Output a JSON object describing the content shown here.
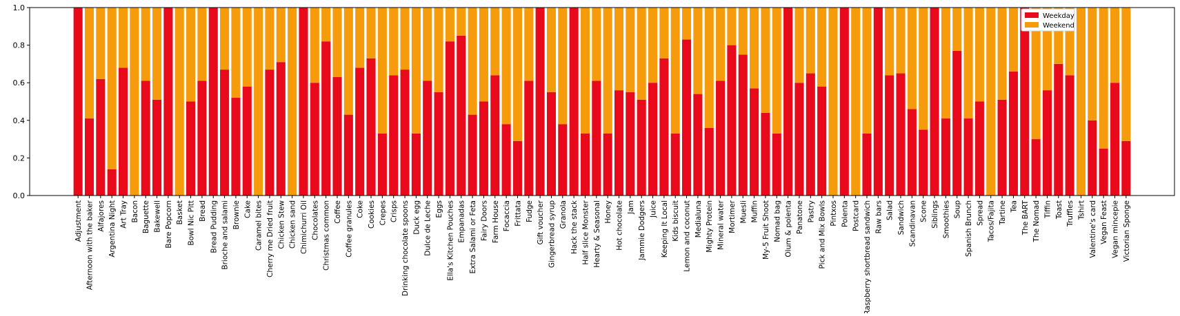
{
  "chart_data": {
    "type": "bar",
    "stacked": true,
    "categories": [
      "Adjustment",
      "Afternoon with the baker",
      "Alfajores",
      "Argentina Night",
      "Art Tray",
      "Bacon",
      "Baguette",
      "Bakewell",
      "Bare Popcorn",
      "Basket",
      "Bowl Nic Pitt",
      "Bread",
      "Bread Pudding",
      "Brioche and salami",
      "Brownie",
      "Cake",
      "Caramel bites",
      "Cherry me Dried fruit",
      "Chicken Stew",
      "Chicken sand",
      "Chimichurri Oil",
      "Chocolates",
      "Christmas common",
      "Coffee",
      "Coffee granules",
      "Coke",
      "Cookies",
      "Crepes",
      "Crisps",
      "Drinking chocolate spoons",
      "Duck egg",
      "Dulce de Leche",
      "Eggs",
      "Ella's Kitchen Pouches",
      "Empanadas",
      "Extra Salami or Feta",
      "Fairy Doors",
      "Farm House",
      "Focaccia",
      "Frittata",
      "Fudge",
      "Gift voucher",
      "Gingerbread syrup",
      "Granola",
      "Hack the stack",
      "Half slice Monster",
      "Hearty & Seasonal",
      "Honey",
      "Hot chocolate",
      "Jam",
      "Jammie Dodgers",
      "Juice",
      "Keeping It Local",
      "Kids biscuit",
      "Lemon and coconut",
      "Medialuna",
      "Mighty Protein",
      "Mineral water",
      "Mortimer",
      "Muesli",
      "Muffin",
      "My-5 Fruit Shoot",
      "Nomad bag",
      "Olum & polenta",
      "Panatone",
      "Pastry",
      "Pick and Mix Bowls",
      "Pintxos",
      "Polenta",
      "Postcard",
      "Raspberry shortbread sandwich",
      "Raw bars",
      "Salad",
      "Sandwich",
      "Scandinavan",
      "Scone",
      "Siblings",
      "Smoothies",
      "Soup",
      "Spanish Brunch",
      "Spread",
      "Tacos/Fajita",
      "Tartine",
      "Tea",
      "The BART",
      "The Nomad",
      "Tiffin",
      "Toast",
      "Truffles",
      "Tshirt",
      "Valentine's card",
      "Vegan Feast",
      "Vegan mincepie",
      "Victorian Sponge"
    ],
    "series": [
      {
        "name": "Weekday",
        "color": "#e8091a",
        "values": [
          1.0,
          0.41,
          0.62,
          0.14,
          0.68,
          0.0,
          0.61,
          0.51,
          1.0,
          0.0,
          0.5,
          0.61,
          1.0,
          0.67,
          0.52,
          0.58,
          0.0,
          0.67,
          0.71,
          0.0,
          1.0,
          0.6,
          0.82,
          0.63,
          0.43,
          0.68,
          0.73,
          0.33,
          0.64,
          0.67,
          0.33,
          0.61,
          0.55,
          0.82,
          0.85,
          0.43,
          0.5,
          0.64,
          0.38,
          0.29,
          0.61,
          1.0,
          0.55,
          0.38,
          1.0,
          0.33,
          0.61,
          0.33,
          0.56,
          0.55,
          0.51,
          0.6,
          0.73,
          0.33,
          0.83,
          0.54,
          0.36,
          0.61,
          0.8,
          0.75,
          0.57,
          0.44,
          0.33,
          1.0,
          0.6,
          0.65,
          0.58,
          0.0,
          1.0,
          0.0,
          0.33,
          1.0,
          0.64,
          0.65,
          0.46,
          0.35,
          1.0,
          0.41,
          0.77,
          0.41,
          0.5,
          0.0,
          0.51,
          0.66,
          1.0,
          0.3,
          0.56,
          0.7,
          0.64,
          0.0,
          0.4,
          0.25,
          0.6,
          0.29
        ]
      },
      {
        "name": "Weekend",
        "color": "#f59b0c",
        "values": [
          0.0,
          0.59,
          0.38,
          0.86,
          0.32,
          1.0,
          0.39,
          0.49,
          0.0,
          1.0,
          0.5,
          0.39,
          0.0,
          0.33,
          0.48,
          0.42,
          1.0,
          0.33,
          0.29,
          1.0,
          0.0,
          0.4,
          0.18,
          0.37,
          0.57,
          0.32,
          0.27,
          0.67,
          0.36,
          0.33,
          0.67,
          0.39,
          0.45,
          0.18,
          0.15,
          0.57,
          0.5,
          0.36,
          0.62,
          0.71,
          0.39,
          0.0,
          0.45,
          0.62,
          0.0,
          0.67,
          0.39,
          0.67,
          0.44,
          0.45,
          0.49,
          0.4,
          0.27,
          0.67,
          0.17,
          0.46,
          0.64,
          0.39,
          0.2,
          0.25,
          0.43,
          0.56,
          0.67,
          0.0,
          0.4,
          0.35,
          0.42,
          1.0,
          0.0,
          1.0,
          0.67,
          0.0,
          0.36,
          0.35,
          0.54,
          0.65,
          0.0,
          0.59,
          0.23,
          0.59,
          0.5,
          1.0,
          0.49,
          0.34,
          0.0,
          0.7,
          0.44,
          0.3,
          0.36,
          1.0,
          0.6,
          0.75,
          0.4,
          0.71
        ]
      }
    ],
    "ylim": [
      0,
      1.0
    ],
    "yticks": [
      "0.0",
      "0.2",
      "0.4",
      "0.6",
      "0.8",
      "1.0"
    ],
    "title": "",
    "xlabel": "",
    "ylabel": "",
    "legend": {
      "placement": "top-right"
    },
    "grid": false
  }
}
